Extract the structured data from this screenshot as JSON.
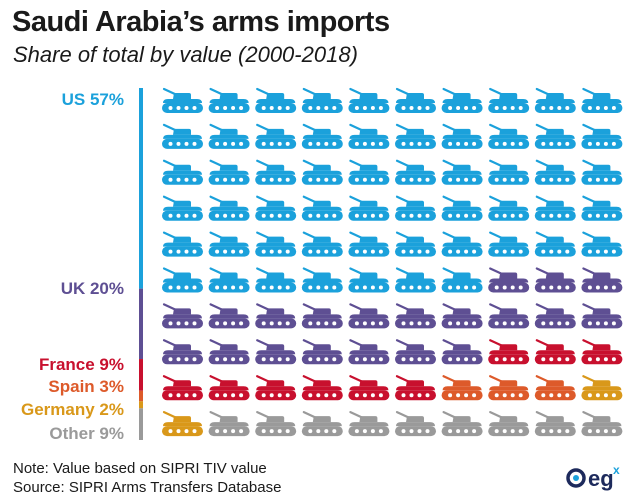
{
  "title": "Saudi Arabia’s arms imports",
  "subtitle": "Share of total by value (2000-2018)",
  "chart_data": {
    "type": "pictogram",
    "icon": "tank-icon",
    "grid": {
      "columns": 10,
      "rows": 10,
      "unit_percent": 1
    },
    "categories": [
      "US",
      "UK",
      "France",
      "Spain",
      "Germany",
      "Other"
    ],
    "values": [
      57,
      20,
      9,
      3,
      2,
      9
    ],
    "labels": [
      "US 57%",
      "UK 20%",
      "France 9%",
      "Spain 3%",
      "Germany 2%",
      "Other 9%"
    ],
    "colors": [
      "#1ba1db",
      "#5e4f93",
      "#c8102e",
      "#dd5a2a",
      "#d9981a",
      "#9a9a9a"
    ]
  },
  "footer": {
    "note": "Note: Value based on SIPRI TIV value",
    "source": "Source: SIPRI Arms Transfers Database"
  },
  "logo": {
    "text": "eg",
    "superscript": "x",
    "color": "#1d2a5c"
  }
}
